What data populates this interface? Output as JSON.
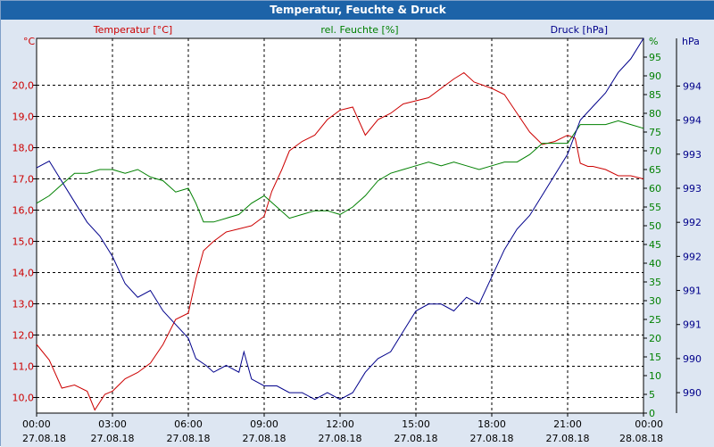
{
  "window": {
    "title": "Temperatur, Feuchte & Druck"
  },
  "colors": {
    "temperature": "#cc0000",
    "humidity": "#008000",
    "pressure": "#00008b",
    "frame": "#1d63a8",
    "background": "#dde6f2"
  },
  "chart_data": {
    "type": "line",
    "title": "Temperatur, Feuchte & Druck",
    "x_axis": {
      "unit": "hours since 27.08.18 00:00",
      "range": [
        0,
        24
      ],
      "ticks": [
        {
          "x": 0,
          "time": "00:00",
          "date": "27.08.18"
        },
        {
          "x": 3,
          "time": "03:00",
          "date": "27.08.18"
        },
        {
          "x": 6,
          "time": "06:00",
          "date": "27.08.18"
        },
        {
          "x": 9,
          "time": "09:00",
          "date": "27.08.18"
        },
        {
          "x": 12,
          "time": "12:00",
          "date": "27.08.18"
        },
        {
          "x": 15,
          "time": "15:00",
          "date": "27.08.18"
        },
        {
          "x": 18,
          "time": "18:00",
          "date": "27.08.18"
        },
        {
          "x": 21,
          "time": "21:00",
          "date": "27.08.18"
        },
        {
          "x": 24,
          "time": "00:00",
          "date": "28.08.18"
        }
      ]
    },
    "axes": {
      "temperature": {
        "unit": "°C",
        "range": [
          9.5,
          21.5
        ],
        "ticks": [
          10.0,
          11.0,
          12.0,
          13.0,
          14.0,
          15.0,
          16.0,
          17.0,
          18.0,
          19.0,
          20.0
        ],
        "tick_labels": [
          "10,0",
          "11,0",
          "12,0",
          "13,0",
          "14,0",
          "15,0",
          "16,0",
          "17,0",
          "18,0",
          "19,0",
          "20,0"
        ]
      },
      "humidity": {
        "unit": "%",
        "range": [
          0,
          100
        ],
        "ticks": [
          0,
          5,
          10,
          15,
          20,
          25,
          30,
          35,
          40,
          45,
          50,
          55,
          60,
          65,
          70,
          75,
          80,
          85,
          90,
          95
        ],
        "tick_labels": [
          "0",
          "5",
          "10",
          "15",
          "20",
          "25",
          "30",
          "35",
          "40",
          "45",
          "50",
          "55",
          "60",
          "65",
          "70",
          "75",
          "80",
          "85",
          "90",
          "95"
        ]
      },
      "pressure": {
        "unit": "hPa",
        "range": [
          989.5,
          995.0
        ],
        "ticks": [
          989.8,
          990.3,
          990.8,
          991.3,
          991.8,
          992.3,
          992.8,
          993.3,
          993.8,
          994.3
        ],
        "tick_labels": [
          "990",
          "990",
          "991",
          "991",
          "992",
          "992",
          "993",
          "993",
          "994",
          "994"
        ]
      }
    },
    "grid": true,
    "series": [
      {
        "name": "Temperatur [°C]",
        "axis": "temperature",
        "points": [
          [
            0,
            11.7
          ],
          [
            0.5,
            11.2
          ],
          [
            1,
            10.3
          ],
          [
            1.5,
            10.4
          ],
          [
            2,
            10.2
          ],
          [
            2.3,
            9.6
          ],
          [
            2.7,
            10.1
          ],
          [
            3,
            10.2
          ],
          [
            3.5,
            10.6
          ],
          [
            4,
            10.8
          ],
          [
            4.5,
            11.1
          ],
          [
            5,
            11.7
          ],
          [
            5.5,
            12.5
          ],
          [
            6,
            12.7
          ],
          [
            6.3,
            13.8
          ],
          [
            6.6,
            14.7
          ],
          [
            7,
            15.0
          ],
          [
            7.5,
            15.3
          ],
          [
            8,
            15.4
          ],
          [
            8.5,
            15.5
          ],
          [
            9,
            15.8
          ],
          [
            9.3,
            16.6
          ],
          [
            9.7,
            17.3
          ],
          [
            10,
            17.9
          ],
          [
            10.5,
            18.2
          ],
          [
            11,
            18.4
          ],
          [
            11.5,
            18.9
          ],
          [
            12,
            19.2
          ],
          [
            12.5,
            19.3
          ],
          [
            13,
            18.4
          ],
          [
            13.5,
            18.9
          ],
          [
            14,
            19.1
          ],
          [
            14.5,
            19.4
          ],
          [
            15,
            19.5
          ],
          [
            15.5,
            19.6
          ],
          [
            16,
            19.9
          ],
          [
            16.5,
            20.2
          ],
          [
            16.9,
            20.4
          ],
          [
            17.3,
            20.1
          ],
          [
            18,
            19.9
          ],
          [
            18.5,
            19.7
          ],
          [
            19,
            19.1
          ],
          [
            19.5,
            18.5
          ],
          [
            20,
            18.1
          ],
          [
            20.5,
            18.2
          ],
          [
            21,
            18.4
          ],
          [
            21.3,
            18.3
          ],
          [
            21.5,
            17.5
          ],
          [
            21.8,
            17.4
          ],
          [
            22,
            17.4
          ],
          [
            22.5,
            17.3
          ],
          [
            23,
            17.1
          ],
          [
            23.5,
            17.1
          ],
          [
            24,
            17.0
          ]
        ]
      },
      {
        "name": "rel. Feuchte [%]",
        "axis": "humidity",
        "points": [
          [
            0,
            56
          ],
          [
            0.5,
            58
          ],
          [
            1,
            61
          ],
          [
            1.5,
            64
          ],
          [
            2,
            64
          ],
          [
            2.5,
            65
          ],
          [
            3,
            65
          ],
          [
            3.5,
            64
          ],
          [
            4,
            65
          ],
          [
            4.5,
            63
          ],
          [
            5,
            62
          ],
          [
            5.5,
            59
          ],
          [
            6,
            60
          ],
          [
            6.3,
            56
          ],
          [
            6.6,
            51
          ],
          [
            7,
            51
          ],
          [
            7.5,
            52
          ],
          [
            8,
            53
          ],
          [
            8.5,
            56
          ],
          [
            9,
            58
          ],
          [
            9.5,
            55
          ],
          [
            10,
            52
          ],
          [
            10.5,
            53
          ],
          [
            11,
            54
          ],
          [
            11.5,
            54
          ],
          [
            12,
            53
          ],
          [
            12.5,
            55
          ],
          [
            13,
            58
          ],
          [
            13.5,
            62
          ],
          [
            14,
            64
          ],
          [
            14.5,
            65
          ],
          [
            15,
            66
          ],
          [
            15.5,
            67
          ],
          [
            16,
            66
          ],
          [
            16.5,
            67
          ],
          [
            17,
            66
          ],
          [
            17.5,
            65
          ],
          [
            18,
            66
          ],
          [
            18.5,
            67
          ],
          [
            19,
            67
          ],
          [
            19.5,
            69
          ],
          [
            20,
            72
          ],
          [
            20.5,
            72
          ],
          [
            21,
            72
          ],
          [
            21.5,
            77
          ],
          [
            22,
            77
          ],
          [
            22.5,
            77
          ],
          [
            23,
            78
          ],
          [
            23.5,
            77
          ],
          [
            24,
            76
          ]
        ]
      },
      {
        "name": "Druck [hPa]",
        "axis": "pressure",
        "points": [
          [
            0,
            993.1
          ],
          [
            0.5,
            993.2
          ],
          [
            1,
            992.9
          ],
          [
            1.5,
            992.6
          ],
          [
            2,
            992.3
          ],
          [
            2.5,
            992.1
          ],
          [
            3,
            991.8
          ],
          [
            3.5,
            991.4
          ],
          [
            4,
            991.2
          ],
          [
            4.5,
            991.3
          ],
          [
            5,
            991.0
          ],
          [
            5.5,
            990.8
          ],
          [
            6,
            990.6
          ],
          [
            6.3,
            990.3
          ],
          [
            6.7,
            990.2
          ],
          [
            7,
            990.1
          ],
          [
            7.5,
            990.2
          ],
          [
            8,
            990.1
          ],
          [
            8.2,
            990.4
          ],
          [
            8.5,
            990.0
          ],
          [
            9,
            989.9
          ],
          [
            9.5,
            989.9
          ],
          [
            10,
            989.8
          ],
          [
            10.5,
            989.8
          ],
          [
            11,
            989.7
          ],
          [
            11.5,
            989.8
          ],
          [
            12,
            989.7
          ],
          [
            12.5,
            989.8
          ],
          [
            13,
            990.1
          ],
          [
            13.5,
            990.3
          ],
          [
            14,
            990.4
          ],
          [
            14.5,
            990.7
          ],
          [
            15,
            991.0
          ],
          [
            15.5,
            991.1
          ],
          [
            16,
            991.1
          ],
          [
            16.5,
            991.0
          ],
          [
            17,
            991.2
          ],
          [
            17.5,
            991.1
          ],
          [
            18,
            991.5
          ],
          [
            18.5,
            991.9
          ],
          [
            19,
            992.2
          ],
          [
            19.5,
            992.4
          ],
          [
            20,
            992.7
          ],
          [
            20.5,
            993.0
          ],
          [
            21,
            993.3
          ],
          [
            21.5,
            993.8
          ],
          [
            22,
            994.0
          ],
          [
            22.5,
            994.2
          ],
          [
            23,
            994.5
          ],
          [
            23.5,
            994.7
          ],
          [
            24,
            995.0
          ]
        ]
      }
    ]
  }
}
